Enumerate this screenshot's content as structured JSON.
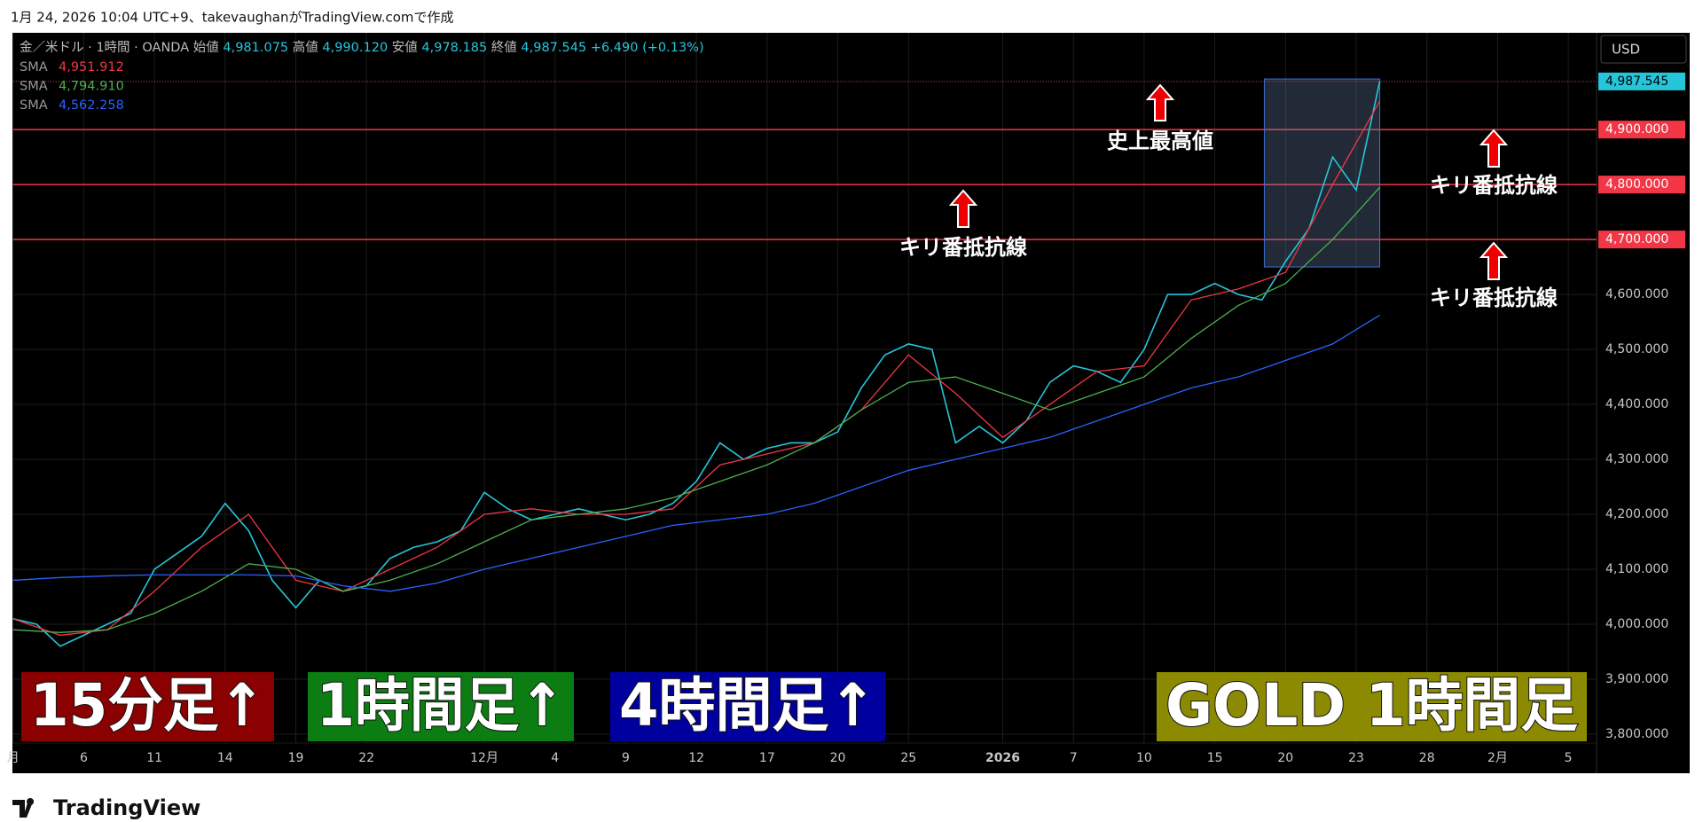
{
  "header": "1月 24, 2026 10:04 UTC+9、takevaughanがTradingView.comで作成",
  "footer": "TradingView",
  "chart_data": {
    "type": "line",
    "symbol": "金／米ドル · 1時間 · OANDA",
    "ohlc": [
      {
        "name": "始値",
        "label": "4,981.075"
      },
      {
        "name": "高値",
        "label": "4,990.120"
      },
      {
        "name": "安値",
        "label": "4,978.185"
      },
      {
        "name": "終値",
        "label": "4,987.545"
      }
    ],
    "change": "+6.490 (+0.13%)",
    "currency": "USD",
    "xlim": [
      0,
      67.2
    ],
    "xticks": [
      {
        "value": 0,
        "label": "月"
      },
      {
        "value": 3,
        "label": "6"
      },
      {
        "value": 6,
        "label": "11"
      },
      {
        "value": 9,
        "label": "14"
      },
      {
        "value": 12,
        "label": "19"
      },
      {
        "value": 15,
        "label": "22"
      },
      {
        "value": 20,
        "label": "12月"
      },
      {
        "value": 23,
        "label": "4"
      },
      {
        "value": 26,
        "label": "9"
      },
      {
        "value": 29,
        "label": "12"
      },
      {
        "value": 32,
        "label": "17"
      },
      {
        "value": 35,
        "label": "20"
      },
      {
        "value": 38,
        "label": "25"
      },
      {
        "value": 42,
        "label": "2026"
      },
      {
        "value": 45,
        "label": "7"
      },
      {
        "value": 48,
        "label": "10"
      },
      {
        "value": 51,
        "label": "15"
      },
      {
        "value": 54,
        "label": "20"
      },
      {
        "value": 57,
        "label": "23"
      },
      {
        "value": 60,
        "label": "28"
      },
      {
        "value": 63,
        "label": "2月"
      },
      {
        "value": 66,
        "label": "5"
      }
    ],
    "ylim": [
      3729,
      5076
    ],
    "yticks": [
      {
        "value": 3800,
        "label": "3,800.000"
      },
      {
        "value": 3900,
        "label": "3,900.000"
      },
      {
        "value": 4000,
        "label": "4,000.000"
      },
      {
        "value": 4100,
        "label": "4,100.000"
      },
      {
        "value": 4200,
        "label": "4,200.000"
      },
      {
        "value": 4300,
        "label": "4,300.000"
      },
      {
        "value": 4400,
        "label": "4,400.000"
      },
      {
        "value": 4500,
        "label": "4,500.000"
      },
      {
        "value": 4600,
        "label": "4,600.000"
      }
    ],
    "grid": true,
    "hlines": [
      {
        "value": 4700,
        "label": "4,700.000",
        "color": "#f23645"
      },
      {
        "value": 4800,
        "label": "4,800.000",
        "color": "#f23645"
      },
      {
        "value": 4900,
        "label": "4,900.000",
        "color": "#f23645"
      }
    ],
    "highlight_box": {
      "xlim": [
        53.1,
        58.0
      ],
      "ylim": [
        4650,
        4992
      ]
    },
    "series": [
      {
        "name": "金／米ドル",
        "color": "#26c6da",
        "x": [
          0,
          1,
          2,
          3,
          4,
          5,
          6,
          7,
          8,
          9,
          10,
          11,
          12,
          13,
          14,
          15,
          16,
          17,
          18,
          19,
          20,
          21,
          22,
          23,
          24,
          25,
          26,
          27,
          28,
          29,
          30,
          31,
          32,
          33,
          34,
          35,
          36,
          37,
          38,
          39,
          40,
          41,
          42,
          43,
          44,
          45,
          46,
          47,
          48,
          49,
          50,
          51,
          52,
          53,
          54,
          55,
          56,
          57,
          58
        ],
        "values": [
          4010,
          4000,
          3960,
          3980,
          4000,
          4020,
          4100,
          4130,
          4160,
          4220,
          4170,
          4080,
          4030,
          4080,
          4060,
          4070,
          4120,
          4140,
          4150,
          4170,
          4240,
          4210,
          4190,
          4200,
          4210,
          4200,
          4190,
          4200,
          4220,
          4260,
          4330,
          4300,
          4320,
          4330,
          4330,
          4350,
          4430,
          4490,
          4510,
          4500,
          4330,
          4360,
          4330,
          4370,
          4440,
          4470,
          4460,
          4440,
          4500,
          4600,
          4600,
          4620,
          4600,
          4590,
          4660,
          4720,
          4850,
          4790,
          4987.545
        ],
        "value_labels": [
          null,
          null,
          null,
          null,
          null,
          null,
          null,
          null,
          null,
          null,
          null,
          null,
          null,
          null,
          null,
          null,
          null,
          null,
          null,
          null,
          null,
          null,
          null,
          null,
          null,
          null,
          null,
          null,
          null,
          null,
          null,
          null,
          null,
          null,
          null,
          null,
          null,
          null,
          null,
          null,
          null,
          null,
          null,
          null,
          null,
          null,
          null,
          null,
          null,
          null,
          null,
          null,
          null,
          null,
          null,
          null,
          null,
          null,
          "4,987.545"
        ]
      },
      {
        "name": "SMA",
        "color": "#f23645",
        "x": [
          0,
          2,
          4,
          6,
          8,
          10,
          12,
          14,
          16,
          18,
          20,
          22,
          24,
          26,
          28,
          30,
          32,
          34,
          36,
          38,
          40,
          42,
          44,
          46,
          48,
          50,
          52,
          54,
          56,
          58
        ],
        "values": [
          4010,
          3980,
          3990,
          4060,
          4140,
          4200,
          4080,
          4060,
          4100,
          4140,
          4200,
          4210,
          4200,
          4200,
          4210,
          4290,
          4310,
          4330,
          4390,
          4490,
          4420,
          4340,
          4400,
          4460,
          4470,
          4590,
          4610,
          4640,
          4800,
          4951.912
        ],
        "value_labels": [
          null,
          null,
          null,
          null,
          null,
          null,
          null,
          null,
          null,
          null,
          null,
          null,
          null,
          null,
          null,
          null,
          null,
          null,
          null,
          null,
          null,
          null,
          null,
          null,
          null,
          null,
          null,
          null,
          null,
          "4,951.912"
        ]
      },
      {
        "name": "SMA",
        "color": "#4caf50",
        "x": [
          0,
          2,
          4,
          6,
          8,
          10,
          12,
          14,
          16,
          18,
          20,
          22,
          24,
          26,
          28,
          30,
          32,
          34,
          36,
          38,
          40,
          42,
          44,
          46,
          48,
          50,
          52,
          54,
          56,
          58
        ],
        "values": [
          3990,
          3985,
          3990,
          4020,
          4060,
          4110,
          4100,
          4060,
          4080,
          4110,
          4150,
          4190,
          4200,
          4210,
          4230,
          4260,
          4290,
          4330,
          4390,
          4440,
          4450,
          4420,
          4390,
          4420,
          4450,
          4520,
          4580,
          4620,
          4700,
          4794.91
        ],
        "value_labels": [
          null,
          null,
          null,
          null,
          null,
          null,
          null,
          null,
          null,
          null,
          null,
          null,
          null,
          null,
          null,
          null,
          null,
          null,
          null,
          null,
          null,
          null,
          null,
          null,
          null,
          null,
          null,
          null,
          null,
          "4,794.910"
        ]
      },
      {
        "name": "SMA",
        "color": "#2962ff",
        "x": [
          0,
          2,
          4,
          6,
          8,
          10,
          12,
          14,
          16,
          18,
          20,
          22,
          24,
          26,
          28,
          30,
          32,
          34,
          36,
          38,
          40,
          42,
          44,
          46,
          48,
          50,
          52,
          54,
          56,
          58
        ],
        "values": [
          4080,
          4085,
          4088,
          4090,
          4090,
          4090,
          4088,
          4070,
          4060,
          4075,
          4100,
          4120,
          4140,
          4160,
          4180,
          4190,
          4200,
          4220,
          4250,
          4280,
          4300,
          4320,
          4340,
          4370,
          4400,
          4430,
          4450,
          4480,
          4510,
          4562.258
        ],
        "value_labels": [
          null,
          null,
          null,
          null,
          null,
          null,
          null,
          null,
          null,
          null,
          null,
          null,
          null,
          null,
          null,
          null,
          null,
          null,
          null,
          null,
          null,
          null,
          null,
          null,
          null,
          null,
          null,
          null,
          null,
          "4,562.258"
        ]
      }
    ],
    "annotations": [
      "史上最高値",
      "キリ番抵抗線",
      "キリ番抵抗線",
      "キリ番抵抗線"
    ],
    "banners": [
      {
        "text": "15分足↑",
        "color": "#8b0000"
      },
      {
        "text": "1時間足↑",
        "color": "#0b7d12"
      },
      {
        "text": "4時間足↑",
        "color": "#00009e"
      },
      {
        "text": "GOLD 1時間足",
        "color": "#8c8a00"
      }
    ]
  }
}
